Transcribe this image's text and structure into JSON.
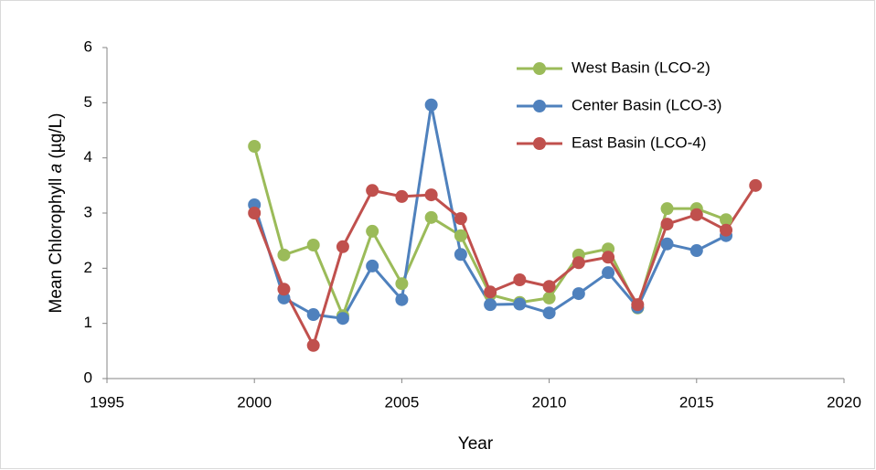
{
  "chart_data": {
    "type": "line",
    "x": [
      2000,
      2001,
      2002,
      2003,
      2004,
      2005,
      2006,
      2007,
      2008,
      2009,
      2010,
      2011,
      2012,
      2013,
      2014,
      2015,
      2016,
      2017
    ],
    "series": [
      {
        "name": "West Basin (LCO-2)",
        "color": "#9bbb59",
        "values": [
          4.21,
          2.24,
          2.42,
          1.14,
          2.67,
          1.72,
          2.92,
          2.59,
          1.52,
          1.38,
          1.46,
          2.24,
          2.35,
          1.28,
          3.08,
          3.08,
          2.88,
          null
        ]
      },
      {
        "name": "Center Basin (LCO-3)",
        "color": "#4f81bd",
        "values": [
          3.15,
          1.46,
          1.16,
          1.09,
          2.04,
          1.43,
          4.96,
          2.25,
          1.34,
          1.35,
          1.19,
          1.54,
          1.92,
          1.29,
          2.44,
          2.32,
          2.59,
          null
        ]
      },
      {
        "name": "East Basin (LCO-4)",
        "color": "#c0504d",
        "values": [
          3.0,
          1.62,
          0.6,
          2.39,
          3.41,
          3.3,
          3.33,
          2.9,
          1.57,
          1.79,
          1.67,
          2.1,
          2.2,
          1.34,
          2.8,
          2.97,
          2.69,
          3.5
        ]
      }
    ],
    "xlabel": "Year",
    "ylabel": [
      "Mean Chlorophyll ",
      "a",
      " (µg/L)"
    ],
    "xlim": [
      1995,
      2020
    ],
    "xticks": [
      1995,
      2000,
      2005,
      2010,
      2015,
      2020
    ],
    "ylim": [
      0,
      6
    ],
    "yticks": [
      0,
      1,
      2,
      3,
      4,
      5,
      6
    ],
    "grid": false,
    "legend": "upper right"
  }
}
